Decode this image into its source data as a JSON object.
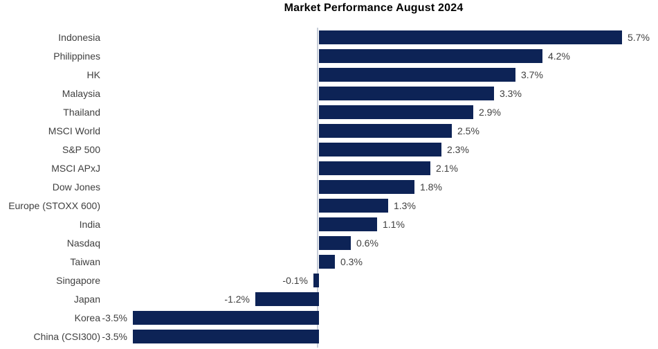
{
  "title": "Market Performance August 2024",
  "chart_data": {
    "type": "bar",
    "orientation": "horizontal",
    "title": "Market Performance August 2024",
    "categories": [
      "Indonesia",
      "Philippines",
      "HK",
      "Malaysia",
      "Thailand",
      "MSCI World",
      "S&P 500",
      "MSCI APxJ",
      "Dow Jones",
      "Europe (STOXX 600)",
      "India",
      "Nasdaq",
      "Taiwan",
      "Singapore",
      "Japan",
      "Korea",
      "China (CSI300)"
    ],
    "values": [
      5.7,
      4.2,
      3.7,
      3.3,
      2.9,
      2.5,
      2.3,
      2.1,
      1.8,
      1.3,
      1.1,
      0.6,
      0.3,
      -0.1,
      -1.2,
      -3.5,
      -3.5
    ],
    "value_labels": [
      "5.7%",
      "4.2%",
      "3.7%",
      "3.3%",
      "2.9%",
      "2.5%",
      "2.3%",
      "2.1%",
      "1.8%",
      "1.3%",
      "1.1%",
      "0.6%",
      "0.3%",
      "-0.1%",
      "-1.2%",
      "-3.5%",
      "-3.5%"
    ],
    "xlabel": "",
    "ylabel": "",
    "xlim": [
      -3.9,
      6.4
    ],
    "grid": false,
    "legend": "none",
    "bar_color": "#0d2356",
    "axis_line_color": "#c7cdd8",
    "label_color": "#3f3f3f",
    "title_color": "#000000"
  }
}
